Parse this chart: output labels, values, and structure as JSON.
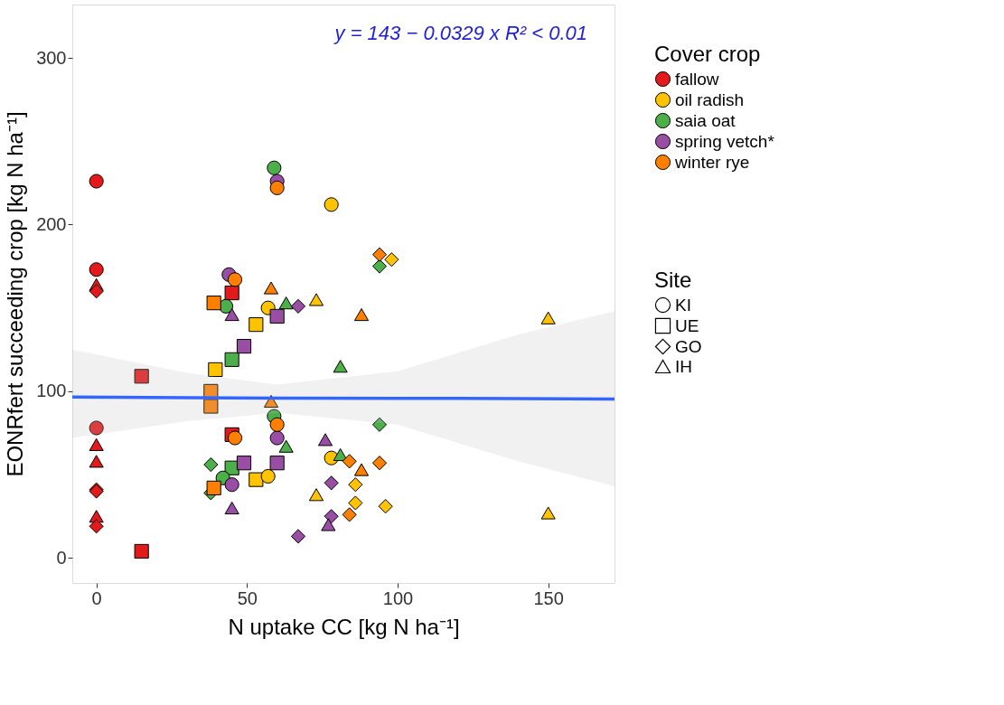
{
  "chart_data": {
    "type": "scatter",
    "xlabel": "N uptake CC [kg N ha⁻¹]",
    "ylabel": "EONRfert succeeding crop [kg N ha⁻¹]",
    "legend_title": [
      "Cover crop",
      "Site"
    ],
    "legend": "right",
    "grid": false,
    "xlim": [
      -8,
      172
    ],
    "xticks": [
      0,
      50,
      100,
      150
    ],
    "ylim": [
      -15,
      332
    ],
    "yticks": [
      0,
      100,
      200,
      300
    ],
    "annotations": [
      "y = 143 − 0.0329 x    R² < 0.01"
    ],
    "series": [
      {
        "name": "KI",
        "marker": "circle"
      },
      {
        "name": "UE",
        "marker": "square"
      },
      {
        "name": "GO",
        "marker": "diamond"
      },
      {
        "name": "IH",
        "marker": "triangle"
      },
      {
        "name": "fallow",
        "color": "#e31a1c",
        "x": [
          0,
          0,
          0,
          0,
          0,
          0,
          0,
          0,
          0,
          0,
          0,
          15,
          15,
          45,
          45
        ],
        "values": [
          226,
          173,
          164,
          160,
          78,
          68,
          58,
          41,
          40,
          25,
          19,
          109,
          4,
          159,
          74
        ],
        "marker": [
          "circle",
          "circle",
          "triangle",
          "diamond",
          "circle",
          "triangle",
          "triangle",
          "diamond",
          "diamond",
          "triangle",
          "diamond",
          "square",
          "square",
          "square",
          "square"
        ]
      },
      {
        "name": "oil radish",
        "color": "#ffc300",
        "x": [
          78,
          57,
          73,
          53,
          39.5,
          53,
          57,
          78,
          73,
          86,
          86,
          96,
          98,
          150,
          150
        ],
        "values": [
          212,
          150,
          155,
          140,
          113,
          47,
          49,
          60,
          38,
          44,
          33,
          31,
          179,
          144,
          27
        ],
        "marker": [
          "circle",
          "circle",
          "triangle",
          "square",
          "square",
          "square",
          "circle",
          "circle",
          "triangle",
          "diamond",
          "diamond",
          "diamond",
          "diamond",
          "triangle",
          "triangle"
        ]
      },
      {
        "name": "saia oat",
        "color": "#4daf4a",
        "x": [
          59,
          43,
          63,
          45,
          81,
          59,
          63,
          38,
          45,
          42,
          38,
          94,
          81,
          94
        ],
        "values": [
          234,
          151,
          153,
          119,
          115,
          85,
          67,
          56,
          54,
          48,
          39,
          80,
          62,
          175
        ],
        "marker": [
          "circle",
          "circle",
          "triangle",
          "square",
          "triangle",
          "circle",
          "triangle",
          "diamond",
          "square",
          "circle",
          "diamond",
          "diamond",
          "triangle",
          "diamond"
        ]
      },
      {
        "name": "spring vetch*",
        "color": "#984ea3",
        "x": [
          60,
          44,
          45,
          60,
          67,
          49,
          60,
          49,
          60,
          45,
          45,
          67,
          76,
          78,
          78,
          77
        ],
        "values": [
          226,
          170,
          146,
          145,
          151,
          127,
          72,
          57,
          57,
          44,
          30,
          13,
          71,
          45,
          25,
          20
        ],
        "marker": [
          "circle",
          "circle",
          "triangle",
          "square",
          "diamond",
          "square",
          "circle",
          "square",
          "square",
          "circle",
          "triangle",
          "diamond",
          "triangle",
          "diamond",
          "diamond",
          "triangle"
        ]
      },
      {
        "name": "winter rye",
        "color": "#ff7f00",
        "x": [
          60,
          46,
          58,
          39,
          88,
          94,
          38,
          38,
          58,
          60,
          46,
          39,
          84,
          88,
          94,
          84
        ],
        "values": [
          222,
          167,
          162,
          153,
          146,
          182,
          100,
          91,
          94,
          80,
          72,
          42,
          58,
          53,
          57,
          26
        ],
        "marker": [
          "circle",
          "circle",
          "triangle",
          "square",
          "triangle",
          "diamond",
          "square",
          "square",
          "triangle",
          "circle",
          "circle",
          "square",
          "diamond",
          "triangle",
          "diamond",
          "diamond"
        ]
      },
      {
        "type": "line",
        "color": "#3366ff",
        "x": [
          -8,
          30,
          60,
          100,
          140,
          172
        ],
        "values": [
          96.5,
          96.2,
          95.9,
          95.8,
          95.6,
          95.4
        ],
        "lower": [
          72,
          82,
          87,
          80,
          58,
          43
        ],
        "upper": [
          125,
          111,
          104,
          112,
          134,
          148
        ]
      }
    ]
  }
}
